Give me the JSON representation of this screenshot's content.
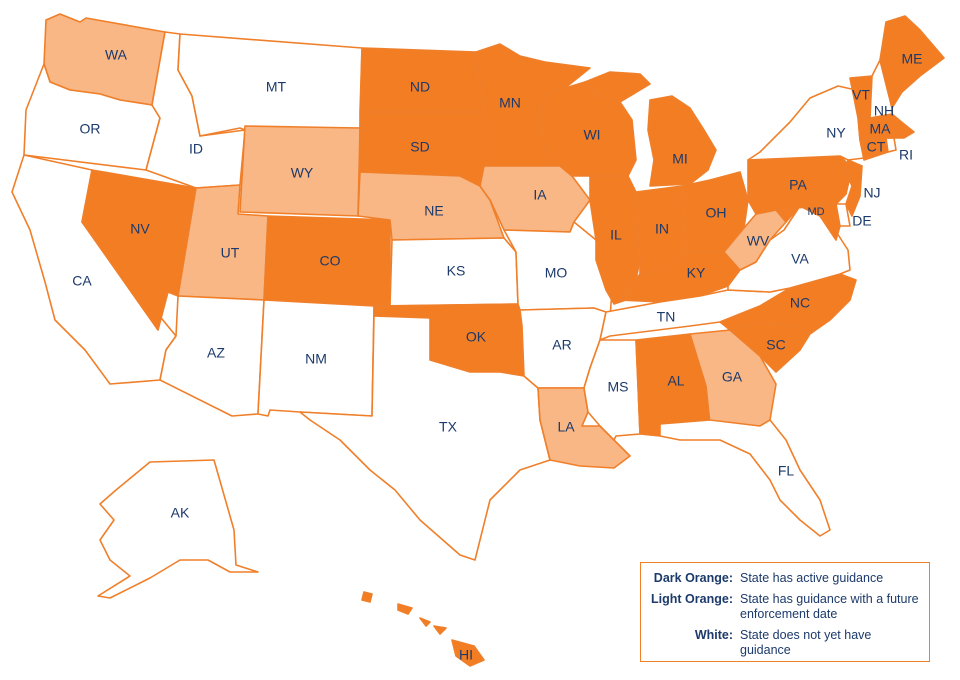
{
  "colors": {
    "dark": "#f37d23",
    "light": "#f9b785",
    "white": "#ffffff",
    "outline": "#f07f2a",
    "text": "#1c3a6b"
  },
  "states": {
    "WA": {
      "label": "WA",
      "status": "light"
    },
    "OR": {
      "label": "OR",
      "status": "white"
    },
    "CA": {
      "label": "CA",
      "status": "white"
    },
    "NV": {
      "label": "NV",
      "status": "dark"
    },
    "ID": {
      "label": "ID",
      "status": "white"
    },
    "MT": {
      "label": "MT",
      "status": "white"
    },
    "WY": {
      "label": "WY",
      "status": "light"
    },
    "UT": {
      "label": "UT",
      "status": "light"
    },
    "AZ": {
      "label": "AZ",
      "status": "white"
    },
    "CO": {
      "label": "CO",
      "status": "dark"
    },
    "NM": {
      "label": "NM",
      "status": "white"
    },
    "ND": {
      "label": "ND",
      "status": "dark"
    },
    "SD": {
      "label": "SD",
      "status": "dark"
    },
    "NE": {
      "label": "NE",
      "status": "light"
    },
    "KS": {
      "label": "KS",
      "status": "white"
    },
    "OK": {
      "label": "OK",
      "status": "dark"
    },
    "TX": {
      "label": "TX",
      "status": "white"
    },
    "MN": {
      "label": "MN",
      "status": "dark"
    },
    "IA": {
      "label": "IA",
      "status": "light"
    },
    "MO": {
      "label": "MO",
      "status": "white"
    },
    "AR": {
      "label": "AR",
      "status": "white"
    },
    "LA": {
      "label": "LA",
      "status": "light"
    },
    "WI": {
      "label": "WI",
      "status": "dark"
    },
    "IL": {
      "label": "IL",
      "status": "dark"
    },
    "MI": {
      "label": "MI",
      "status": "dark"
    },
    "IN": {
      "label": "IN",
      "status": "dark"
    },
    "OH": {
      "label": "OH",
      "status": "dark"
    },
    "KY": {
      "label": "KY",
      "status": "dark"
    },
    "TN": {
      "label": "TN",
      "status": "white"
    },
    "MS": {
      "label": "MS",
      "status": "white"
    },
    "AL": {
      "label": "AL",
      "status": "dark"
    },
    "GA": {
      "label": "GA",
      "status": "light"
    },
    "FL": {
      "label": "FL",
      "status": "white"
    },
    "SC": {
      "label": "SC",
      "status": "dark"
    },
    "NC": {
      "label": "NC",
      "status": "dark"
    },
    "VA": {
      "label": "VA",
      "status": "white"
    },
    "WV": {
      "label": "WV",
      "status": "light"
    },
    "MD": {
      "label": "MD",
      "status": "dark"
    },
    "DE": {
      "label": "DE",
      "status": "white"
    },
    "PA": {
      "label": "PA",
      "status": "dark"
    },
    "NJ": {
      "label": "NJ",
      "status": "dark"
    },
    "NY": {
      "label": "NY",
      "status": "white"
    },
    "CT": {
      "label": "CT",
      "status": "dark"
    },
    "RI": {
      "label": "RI",
      "status": "white"
    },
    "MA": {
      "label": "MA",
      "status": "dark"
    },
    "VT": {
      "label": "VT",
      "status": "dark"
    },
    "NH": {
      "label": "NH",
      "status": "white"
    },
    "ME": {
      "label": "ME",
      "status": "dark"
    },
    "AK": {
      "label": "AK",
      "status": "white"
    },
    "HI": {
      "label": "HI",
      "status": "dark"
    }
  },
  "legend": {
    "items": [
      {
        "key": "Dark Orange:",
        "desc": "State has active guidance"
      },
      {
        "key": "Light Orange:",
        "desc": "State has guidance with a future enforcement date"
      },
      {
        "key": "White:",
        "desc": "State does not yet have guidance"
      }
    ]
  }
}
